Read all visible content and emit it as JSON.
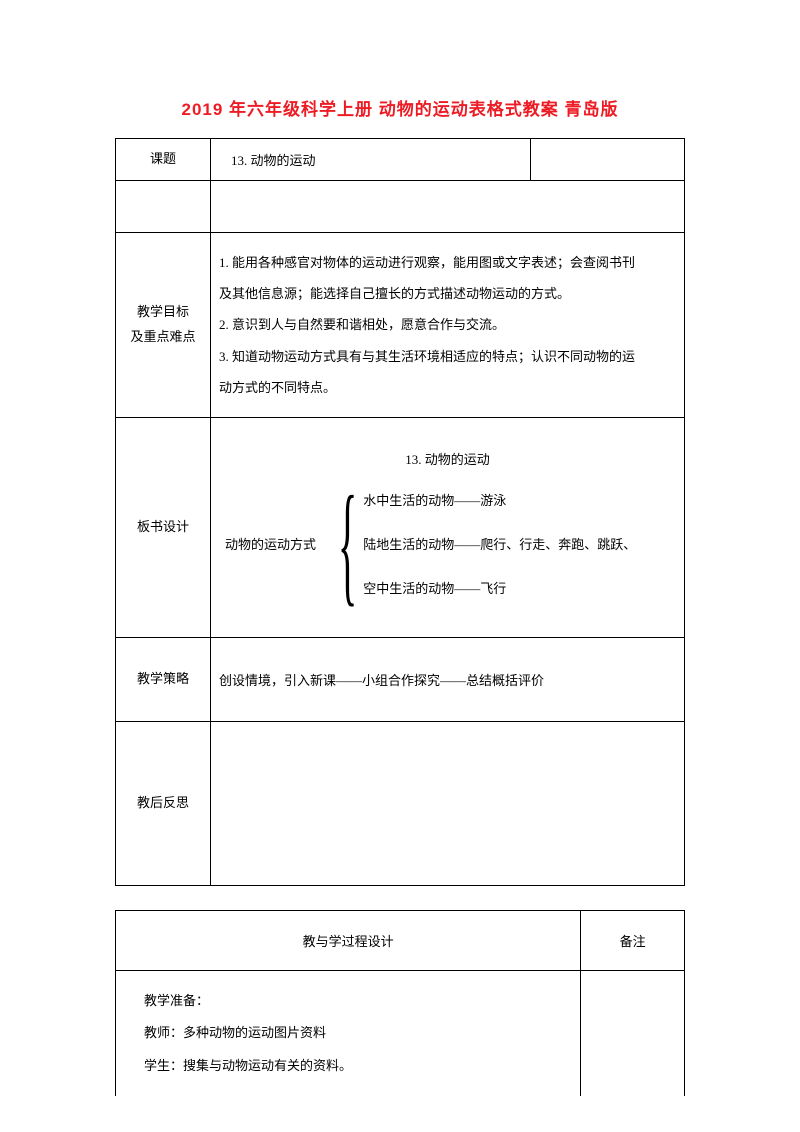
{
  "title": "2019 年六年级科学上册 动物的运动表格式教案 青岛版",
  "row1": {
    "label": "课题",
    "value": "13. 动物的运动"
  },
  "objectives": {
    "label1": "教学目标",
    "label2": "及重点难点",
    "line1": "1. 能用各种感官对物体的运动进行观察，能用图或文字表述；会查阅书刊",
    "line2": "及其他信息源；能选择自己擅长的方式描述动物运动的方式。",
    "line3": "2. 意识到人与自然要和谐相处，愿意合作与交流。",
    "line4": "3. 知道动物运动方式具有与其生活环境相适应的特点；认识不同动物的运",
    "line5": "动方式的不同特点。"
  },
  "board": {
    "label": "板书设计",
    "heading": "13. 动物的运动",
    "left": "动物的运动方式",
    "r1": "水中生活的动物——游泳",
    "r2": "陆地生活的动物——爬行、行走、奔跑、跳跃、",
    "r3": "空中生活的动物——飞行"
  },
  "strategy": {
    "label": "教学策略",
    "content": "创设情境，引入新课——小组合作探究——总结概括评价"
  },
  "reflect": {
    "label": "教后反思"
  },
  "process": {
    "header_left": "教与学过程设计",
    "header_right": "备注",
    "p1": "教学准备：",
    "p2": "教师：多种动物的运动图片资料",
    "p3": "学生：搜集与动物运动有关的资料。"
  }
}
